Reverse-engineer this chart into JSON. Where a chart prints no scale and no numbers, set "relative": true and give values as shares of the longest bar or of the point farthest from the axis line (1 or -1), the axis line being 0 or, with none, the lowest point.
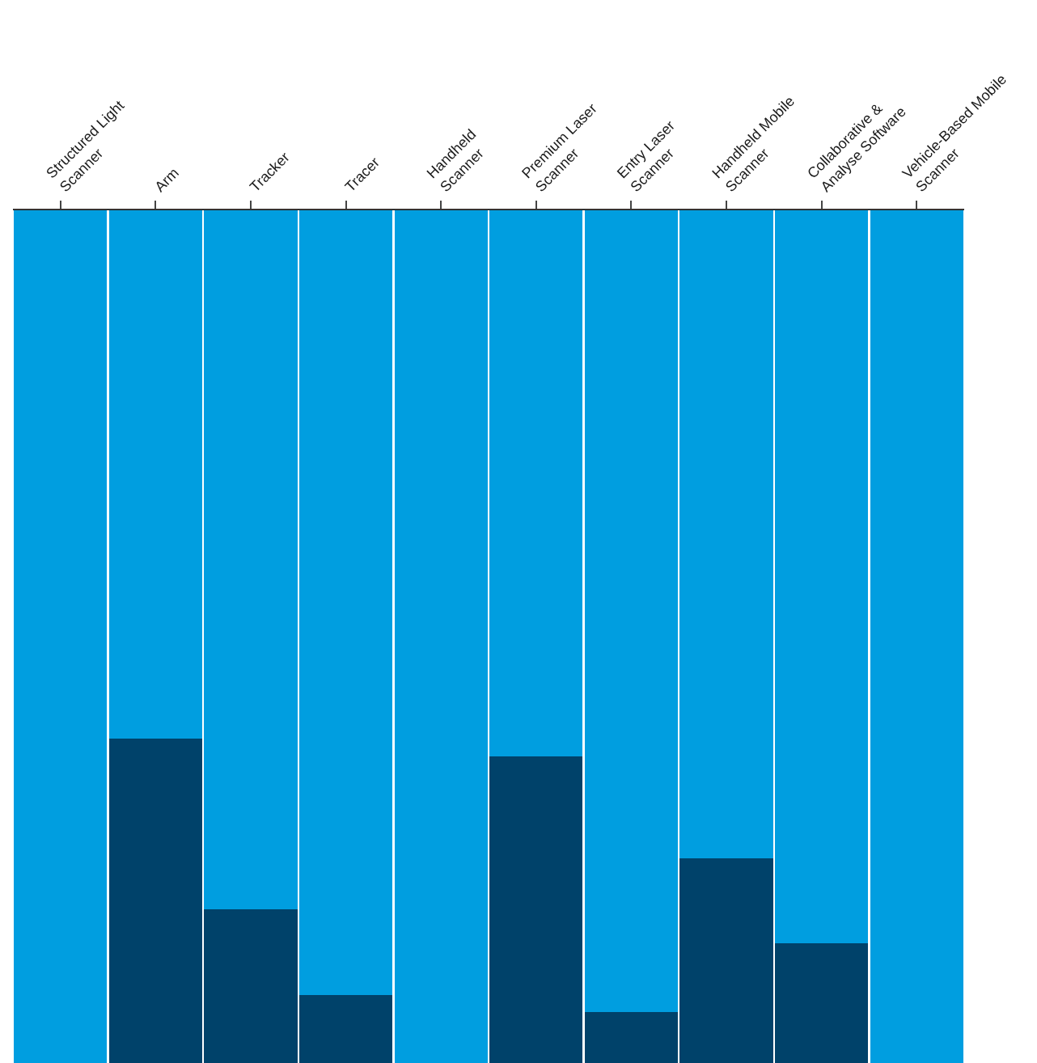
{
  "chart_data": {
    "type": "bar",
    "stacked": true,
    "relative": true,
    "categories": [
      "Structured Light Scanner",
      "Arm",
      "Tracker",
      "Tracer",
      "Handheld Scanner",
      "Premium Laser Scanner",
      "Entry Laser Scanner",
      "Handheld Mobile Scanner",
      "Collaborative & Analyse Software",
      "Vehicle-Based Mobile Scanner"
    ],
    "series": [
      {
        "color": "#00426a",
        "values": [
          0,
          0.38,
          0.18,
          0.08,
          0,
          0.36,
          0.06,
          0.24,
          0.14,
          0
        ]
      },
      {
        "color": "#009ee0",
        "values": [
          1,
          0.62,
          0.82,
          0.92,
          1,
          0.64,
          0.94,
          0.76,
          0.86,
          1
        ]
      }
    ],
    "legend": false
  }
}
